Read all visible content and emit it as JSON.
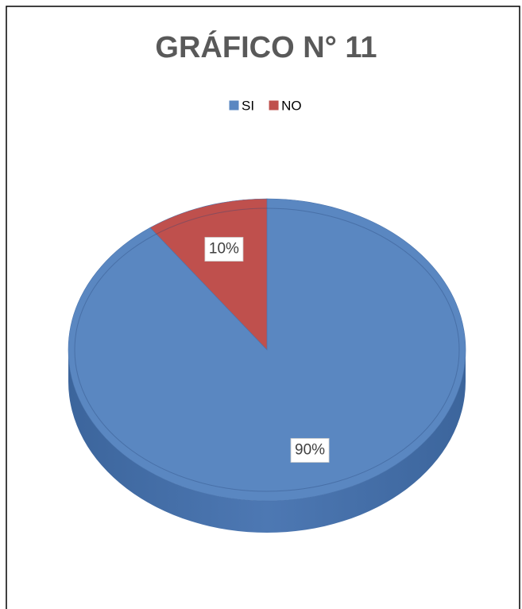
{
  "chart_data": {
    "type": "pie",
    "title": "GRÁFICO N° 11",
    "categories": [
      "SI",
      "NO"
    ],
    "values": [
      90,
      10
    ],
    "value_labels": [
      "90%",
      "10%"
    ],
    "colors": [
      "#5a87c1",
      "#bf504d"
    ],
    "legend": "top"
  }
}
